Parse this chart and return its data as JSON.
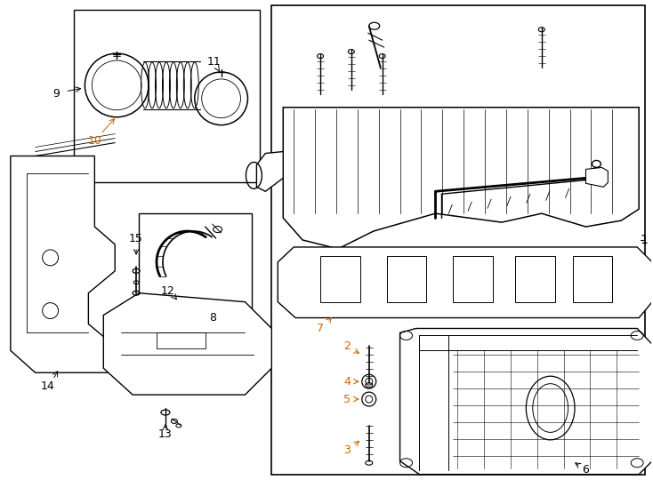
{
  "bg_color": "#ffffff",
  "line_color": "#000000",
  "label_color": "#000000",
  "number_color": "#cc6600",
  "fig_width": 7.34,
  "fig_height": 5.4,
  "dpi": 100
}
